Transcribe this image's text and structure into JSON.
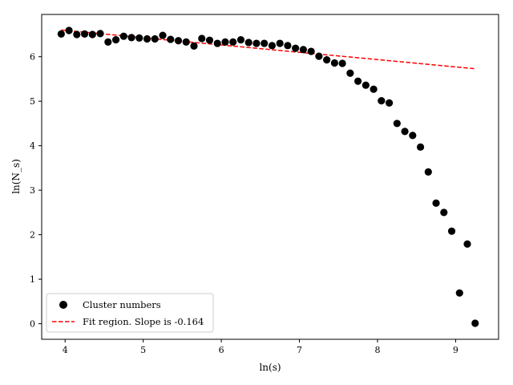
{
  "chart_data": {
    "type": "scatter",
    "xlabel": "ln(s)",
    "ylabel": "ln(N_s)",
    "xlim": [
      3.7,
      9.55
    ],
    "ylim": [
      -0.35,
      6.95
    ],
    "xticks": [
      4,
      5,
      6,
      7,
      8,
      9
    ],
    "yticks": [
      0,
      1,
      2,
      3,
      4,
      5,
      6
    ],
    "grid": false,
    "legend_position": "lower-left",
    "series": [
      {
        "name": "Cluster numbers",
        "kind": "scatter",
        "color": "#000000",
        "x": [
          3.95,
          4.05,
          4.15,
          4.25,
          4.35,
          4.45,
          4.55,
          4.65,
          4.75,
          4.85,
          4.95,
          5.05,
          5.15,
          5.25,
          5.35,
          5.45,
          5.55,
          5.65,
          5.75,
          5.85,
          5.95,
          6.05,
          6.15,
          6.25,
          6.35,
          6.45,
          6.55,
          6.65,
          6.75,
          6.85,
          6.95,
          7.05,
          7.15,
          7.25,
          7.35,
          7.45,
          7.55,
          7.65,
          7.75,
          7.85,
          7.95,
          8.05,
          8.15,
          8.25,
          8.35,
          8.45,
          8.55,
          8.65,
          8.75,
          8.85,
          8.95,
          9.05,
          9.15,
          9.25
        ],
        "y": [
          6.51,
          6.59,
          6.5,
          6.51,
          6.5,
          6.52,
          6.33,
          6.38,
          6.46,
          6.43,
          6.42,
          6.4,
          6.4,
          6.48,
          6.39,
          6.36,
          6.33,
          6.24,
          6.41,
          6.37,
          6.3,
          6.33,
          6.33,
          6.38,
          6.32,
          6.3,
          6.3,
          6.25,
          6.3,
          6.25,
          6.19,
          6.16,
          6.12,
          6.01,
          5.93,
          5.86,
          5.85,
          5.63,
          5.45,
          5.36,
          5.27,
          5.01,
          4.96,
          4.5,
          4.32,
          4.23,
          3.97,
          3.41,
          2.71,
          2.5,
          2.08,
          0.69,
          1.79,
          0.01
        ]
      },
      {
        "name": "Fit region. Slope is -0.164",
        "kind": "line",
        "style": "dashed",
        "color": "#ff0000",
        "x": [
          3.95,
          9.25
        ],
        "y": [
          6.6,
          5.73
        ]
      }
    ]
  }
}
